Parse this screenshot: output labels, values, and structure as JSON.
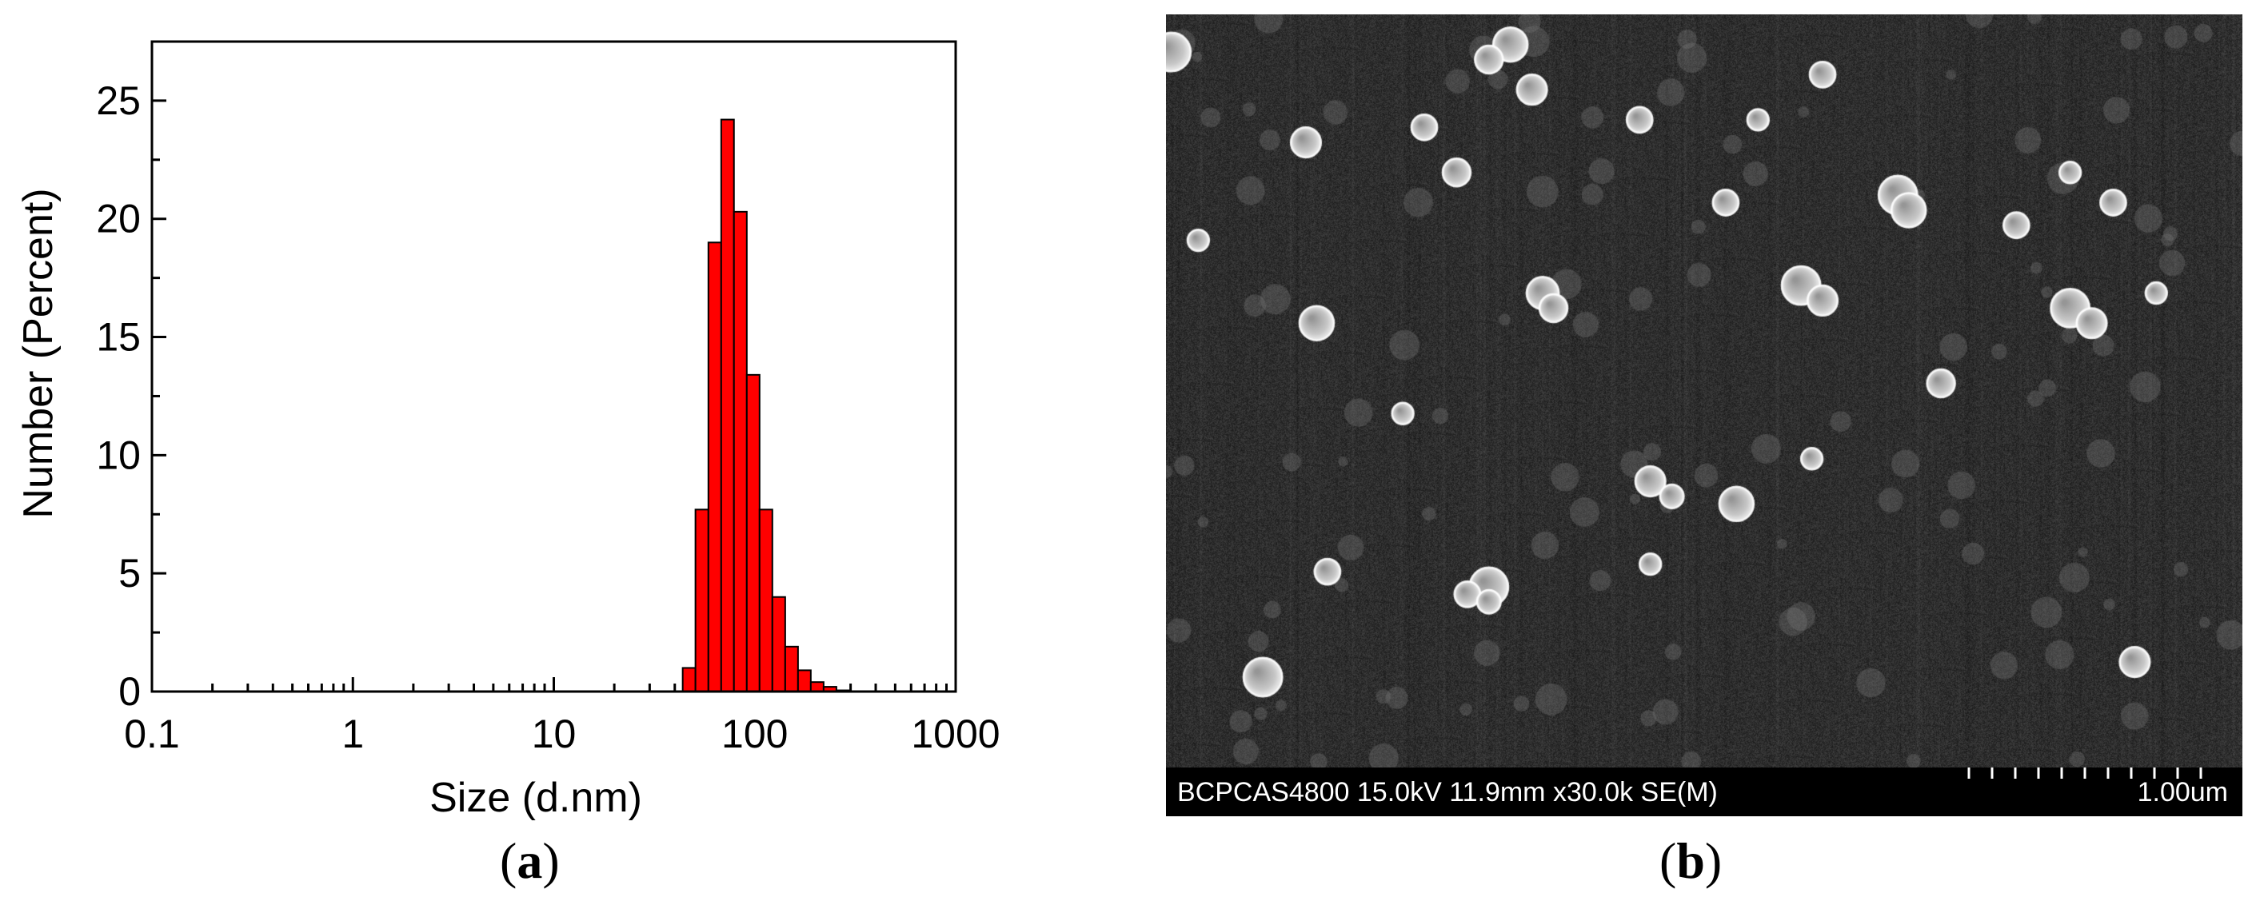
{
  "chart_data": {
    "type": "bar",
    "xscale": "log",
    "xlim": [
      0.1,
      1000
    ],
    "ylim": [
      0,
      27.5
    ],
    "xticks": [
      0.1,
      1,
      10,
      100,
      1000
    ],
    "xtick_labels": [
      "0.1",
      "1",
      "10",
      "100",
      "1000"
    ],
    "yticks": [
      0,
      5,
      10,
      15,
      20,
      25
    ],
    "ytick_labels": [
      "0",
      "5",
      "10",
      "15",
      "20",
      "25"
    ],
    "xlabel": "Size (d.nm)",
    "ylabel": "Number (Percent)",
    "bar_color": "#ff0000",
    "bin_edges": [
      43.8,
      50.7,
      58.8,
      68.1,
      78.8,
      91.3,
      105.7,
      122.4,
      141.8,
      164.2,
      190.1,
      220.2,
      255.0,
      295.3
    ],
    "values": [
      1.0,
      7.7,
      19.0,
      24.2,
      20.3,
      13.4,
      7.7,
      4.0,
      1.9,
      0.9,
      0.4,
      0.2,
      0.05
    ]
  },
  "panels": {
    "a_paren_open": "(",
    "a_letter": "a",
    "a_paren_close": ")",
    "b_paren_open": "(",
    "b_letter": "b",
    "b_paren_close": ")"
  },
  "sem": {
    "info_text": "BCPCAS4800 15.0kV 11.9mm x30.0k SE(M)",
    "scale_label": "1.00um"
  }
}
